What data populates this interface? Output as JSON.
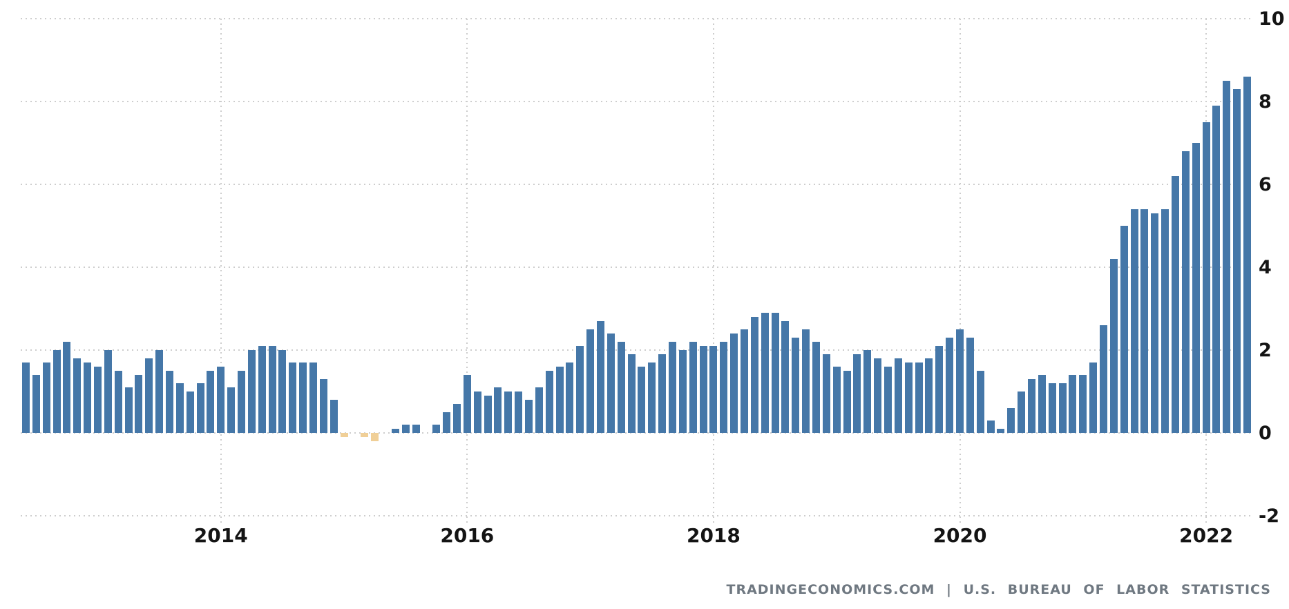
{
  "attribution": {
    "text": "TRADINGECONOMICS.COM | U.S. BUREAU OF LABOR STATISTICS"
  },
  "chart_data": {
    "type": "bar",
    "x_start": "2012-06",
    "x_end": "2022-05",
    "frequency": "monthly",
    "unit": "percent",
    "values": [
      1.7,
      1.4,
      1.7,
      2.0,
      2.2,
      1.8,
      1.7,
      1.6,
      2.0,
      1.5,
      1.1,
      1.4,
      1.8,
      2.0,
      1.5,
      1.2,
      1.0,
      1.2,
      1.5,
      1.6,
      1.1,
      1.5,
      2.0,
      2.1,
      2.1,
      2.0,
      1.7,
      1.7,
      1.7,
      1.3,
      0.8,
      -0.1,
      0.0,
      -0.1,
      -0.2,
      0.0,
      0.1,
      0.2,
      0.2,
      0.0,
      0.2,
      0.5,
      0.7,
      1.4,
      1.0,
      0.9,
      1.1,
      1.0,
      1.0,
      0.8,
      1.1,
      1.5,
      1.6,
      1.7,
      2.1,
      2.5,
      2.7,
      2.4,
      2.2,
      1.9,
      1.6,
      1.7,
      1.9,
      2.2,
      2.0,
      2.2,
      2.1,
      2.1,
      2.2,
      2.4,
      2.5,
      2.8,
      2.9,
      2.9,
      2.7,
      2.3,
      2.5,
      2.2,
      1.9,
      1.6,
      1.5,
      1.9,
      2.0,
      1.8,
      1.6,
      1.8,
      1.7,
      1.7,
      1.8,
      2.1,
      2.3,
      2.5,
      2.3,
      1.5,
      0.3,
      0.1,
      0.6,
      1.0,
      1.3,
      1.4,
      1.2,
      1.2,
      1.4,
      1.4,
      1.7,
      2.6,
      4.2,
      5.0,
      5.4,
      5.4,
      5.3,
      5.4,
      6.2,
      6.8,
      7.0,
      7.5,
      7.9,
      8.5,
      8.3,
      8.6
    ],
    "x_tick_labels": [
      "2014",
      "2016",
      "2018",
      "2020",
      "2022"
    ],
    "y_ticks": [
      10,
      8,
      6,
      4,
      2,
      0,
      -2
    ],
    "ylim": [
      -2,
      10
    ],
    "grid_style": "dotted",
    "legend": "none",
    "colors": {
      "positive_bar": "#4577a8",
      "negative_bar": "#f0cf97",
      "gridline": "#cdcdcd",
      "axis_label": "#141414",
      "attribution_text": "#6f7881"
    }
  }
}
